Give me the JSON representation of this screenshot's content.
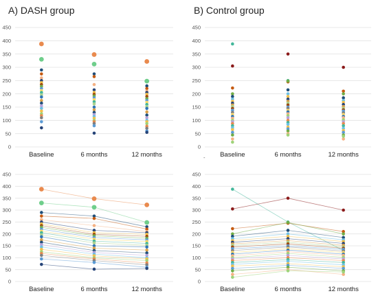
{
  "panels_title": {
    "a": "A) DASH group",
    "b": "B) Control group"
  },
  "stray_mark": "-",
  "palette": [
    "#e98a4e",
    "#f3c04a",
    "#6cc0e5",
    "#9fd37a",
    "#1f4e79",
    "#7f7f7f",
    "#8b1a1a",
    "#43b79a",
    "#d9a04a",
    "#b7a1d9",
    "#2e75b6",
    "#c55a11",
    "#f4b183",
    "#a9d18e",
    "#5b9bd5",
    "#ffd966",
    "#70ad47",
    "#264478",
    "#9e480e",
    "#636363"
  ],
  "chart_data": [
    {
      "type": "scatter",
      "title": "A) DASH group",
      "categories": [
        "Baseline",
        "6 months",
        "12 months"
      ],
      "ylim": [
        0,
        450
      ],
      "yticks": [
        0,
        50,
        100,
        150,
        200,
        250,
        300,
        350,
        400,
        450
      ],
      "grid": true,
      "series": [
        {
          "values": [
            388,
            348,
            322
          ],
          "color": "#e98a4e"
        },
        {
          "values": [
            330,
            312,
            248
          ],
          "color": "#6fce8b"
        },
        {
          "values": [
            290,
            275,
            230
          ],
          "color": "#1f4e79"
        },
        {
          "values": [
            275,
            265,
            220
          ],
          "color": "#c55a11"
        },
        {
          "values": [
            260,
            235,
            210
          ],
          "color": "#f4b183"
        },
        {
          "values": [
            250,
            215,
            205
          ],
          "color": "#264478"
        },
        {
          "values": [
            242,
            205,
            198
          ],
          "color": "#f3c04a"
        },
        {
          "values": [
            235,
            198,
            190
          ],
          "color": "#9e480e"
        },
        {
          "values": [
            228,
            192,
            182
          ],
          "color": "#70ad47"
        },
        {
          "values": [
            220,
            185,
            175
          ],
          "color": "#5b9bd5"
        },
        {
          "values": [
            212,
            178,
            168
          ],
          "color": "#ffd966"
        },
        {
          "values": [
            205,
            170,
            160
          ],
          "color": "#43b79a"
        },
        {
          "values": [
            196,
            162,
            152
          ],
          "color": "#a9d18e"
        },
        {
          "values": [
            188,
            150,
            145
          ],
          "color": "#2e75b6"
        },
        {
          "values": [
            175,
            140,
            132
          ],
          "color": "#d9a04a"
        },
        {
          "values": [
            165,
            130,
            120
          ],
          "color": "#1f4e79"
        },
        {
          "values": [
            155,
            122,
            110
          ],
          "color": "#b7a1d9"
        },
        {
          "values": [
            145,
            115,
            100
          ],
          "color": "#6cc0e5"
        },
        {
          "values": [
            135,
            108,
            95
          ],
          "color": "#f3c04a"
        },
        {
          "values": [
            125,
            100,
            88
          ],
          "color": "#9fd37a"
        },
        {
          "values": [
            118,
            95,
            78
          ],
          "color": "#e98a4e"
        },
        {
          "values": [
            110,
            88,
            70
          ],
          "color": "#7f7f7f"
        },
        {
          "values": [
            95,
            80,
            60
          ],
          "color": "#5b9bd5"
        },
        {
          "values": [
            72,
            52,
            55
          ],
          "color": "#264478"
        }
      ]
    },
    {
      "type": "scatter",
      "title": "B) Control group",
      "categories": [
        "Baseline",
        "6 months",
        "12 months"
      ],
      "ylim": [
        0,
        450
      ],
      "yticks": [
        0,
        50,
        100,
        150,
        200,
        250,
        300,
        350,
        400,
        450
      ],
      "grid": true,
      "series": [
        {
          "values": [
            388,
            250,
            130
          ],
          "color": "#43b79a"
        },
        {
          "values": [
            305,
            350,
            300
          ],
          "color": "#8b1a1a"
        },
        {
          "values": [
            222,
            245,
            210
          ],
          "color": "#c55a11"
        },
        {
          "values": [
            200,
            248,
            200
          ],
          "color": "#70ad47"
        },
        {
          "values": [
            190,
            215,
            185
          ],
          "color": "#1f4e79"
        },
        {
          "values": [
            180,
            200,
            175
          ],
          "color": "#6cc0e5"
        },
        {
          "values": [
            172,
            190,
            168
          ],
          "color": "#f3c04a"
        },
        {
          "values": [
            165,
            180,
            160
          ],
          "color": "#264478"
        },
        {
          "values": [
            158,
            172,
            152
          ],
          "color": "#d9a04a"
        },
        {
          "values": [
            152,
            165,
            145
          ],
          "color": "#a9d18e"
        },
        {
          "values": [
            145,
            158,
            140
          ],
          "color": "#9e480e"
        },
        {
          "values": [
            138,
            150,
            135
          ],
          "color": "#5b9bd5"
        },
        {
          "values": [
            130,
            145,
            128
          ],
          "color": "#7f7f7f"
        },
        {
          "values": [
            122,
            138,
            122
          ],
          "color": "#ffd966"
        },
        {
          "values": [
            115,
            132,
            115
          ],
          "color": "#2e75b6"
        },
        {
          "values": [
            108,
            125,
            110
          ],
          "color": "#f4b183"
        },
        {
          "values": [
            100,
            118,
            102
          ],
          "color": "#9fd37a"
        },
        {
          "values": [
            95,
            110,
            95
          ],
          "color": "#b7a1d9"
        },
        {
          "values": [
            88,
            100,
            88
          ],
          "color": "#e98a4e"
        },
        {
          "values": [
            80,
            92,
            80
          ],
          "color": "#43b79a"
        },
        {
          "values": [
            72,
            85,
            70
          ],
          "color": "#6cc0e5"
        },
        {
          "values": [
            65,
            75,
            62
          ],
          "color": "#f3c04a"
        },
        {
          "values": [
            55,
            68,
            55
          ],
          "color": "#5b9bd5"
        },
        {
          "values": [
            45,
            60,
            45
          ],
          "color": "#70ad47"
        },
        {
          "values": [
            30,
            50,
            30
          ],
          "color": "#f4b183"
        },
        {
          "values": [
            18,
            45,
            40
          ],
          "color": "#9fd37a"
        }
      ]
    }
  ]
}
